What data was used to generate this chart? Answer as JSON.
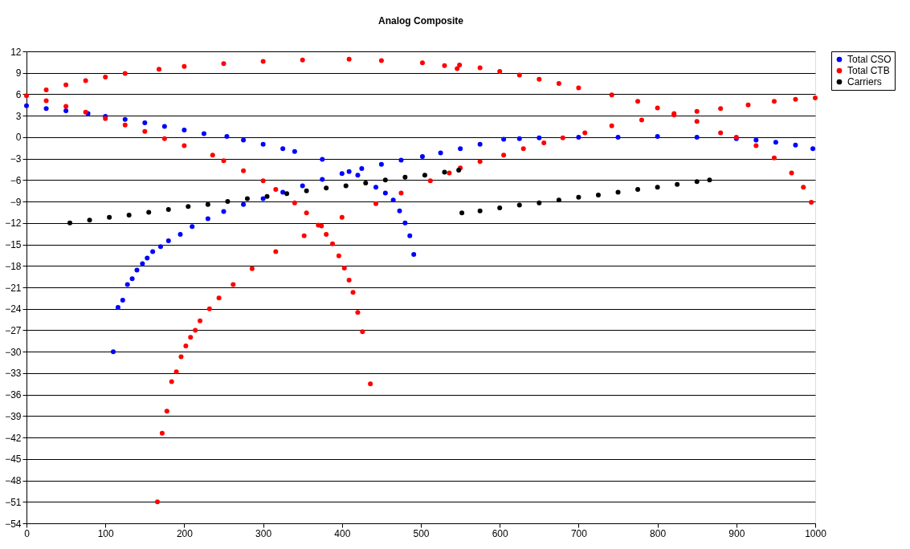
{
  "chart_data": {
    "type": "scatter",
    "title": "Analog Composite",
    "xlim": [
      0,
      1000
    ],
    "xticks": [
      0,
      100,
      200,
      300,
      400,
      500,
      600,
      700,
      800,
      900,
      1000
    ],
    "ylim": [
      -54,
      12
    ],
    "yticks": [
      -54,
      -51,
      -48,
      -45,
      -42,
      -39,
      -36,
      -33,
      -30,
      -27,
      -24,
      -21,
      -18,
      -15,
      -12,
      -9,
      -6,
      -3,
      0,
      3,
      6,
      9,
      12
    ],
    "grid": "y",
    "legend": "right",
    "marker": "circle",
    "series": [
      {
        "name": "Total CSO",
        "color": "#0000ff",
        "x": [
          0,
          25,
          50,
          78,
          100,
          125,
          150,
          175,
          200,
          225,
          254,
          275,
          300,
          325,
          340,
          375,
          409,
          420,
          443,
          455,
          465,
          473,
          480,
          486,
          491,
          110,
          116,
          122,
          128,
          134,
          140,
          147,
          153,
          160,
          170,
          180,
          195,
          210,
          230,
          250,
          275,
          300,
          325,
          350,
          375,
          400,
          425,
          450,
          475,
          502,
          525,
          550,
          575,
          605,
          625,
          650,
          700,
          750,
          800,
          850,
          900,
          925,
          950,
          975,
          997
        ],
        "values": [
          4.4,
          4.0,
          3.7,
          3.3,
          2.9,
          2.5,
          2.0,
          1.5,
          1.0,
          0.5,
          0.1,
          -0.4,
          -1.0,
          -1.6,
          -2.0,
          -3.1,
          -4.8,
          -5.3,
          -7.0,
          -7.8,
          -8.8,
          -10.3,
          -12.0,
          -13.8,
          -16.4,
          -30.0,
          -23.8,
          -22.8,
          -20.6,
          -19.8,
          -18.6,
          -17.7,
          -16.9,
          -16.0,
          -15.3,
          -14.5,
          -13.6,
          -12.5,
          -11.4,
          -10.4,
          -9.4,
          -8.6,
          -7.7,
          -6.8,
          -5.9,
          -5.1,
          -4.4,
          -3.8,
          -3.2,
          -2.7,
          -2.2,
          -1.6,
          -1.0,
          -0.3,
          -0.2,
          -0.1,
          0.0,
          0.0,
          0.1,
          0.0,
          -0.2,
          -0.4,
          -0.7,
          -1.1,
          -1.6
        ]
      },
      {
        "name": "Total CTB",
        "color": "#ff0000",
        "x": [
          0,
          25,
          50,
          75,
          100,
          125,
          168,
          200,
          250,
          300,
          350,
          409,
          450,
          502,
          530,
          546,
          549,
          575,
          600,
          625,
          650,
          675,
          700,
          742,
          775,
          800,
          821,
          850,
          880,
          900,
          925,
          948,
          970,
          985,
          995,
          25,
          50,
          75,
          100,
          125,
          150,
          175,
          200,
          236,
          250,
          275,
          300,
          316,
          340,
          355,
          370,
          380,
          388,
          396,
          403,
          409,
          414,
          420,
          426,
          436,
          166,
          172,
          178,
          184,
          190,
          196,
          202,
          208,
          214,
          220,
          232,
          244,
          262,
          286,
          316,
          352,
          374,
          400,
          443,
          475,
          512,
          536,
          550,
          575,
          605,
          630,
          656,
          680,
          708,
          742,
          780,
          821,
          850,
          880,
          915,
          948,
          975,
          1000
        ],
        "values": [
          5.8,
          6.6,
          7.3,
          7.9,
          8.4,
          8.9,
          9.5,
          9.9,
          10.3,
          10.6,
          10.8,
          10.9,
          10.7,
          10.4,
          10.0,
          9.6,
          10.1,
          9.7,
          9.2,
          8.7,
          8.1,
          7.5,
          6.9,
          5.9,
          5.0,
          4.1,
          3.3,
          2.2,
          0.6,
          0.0,
          -1.2,
          -2.9,
          -5.0,
          -7.0,
          -9.1,
          5.1,
          4.3,
          3.5,
          2.6,
          1.7,
          0.8,
          -0.2,
          -1.2,
          -2.5,
          -3.3,
          -4.7,
          -6.1,
          -7.3,
          -9.2,
          -10.6,
          -12.3,
          -13.6,
          -14.9,
          -16.6,
          -18.3,
          -20.0,
          -21.7,
          -24.5,
          -27.2,
          -34.5,
          -51.0,
          -41.4,
          -38.3,
          -34.2,
          -32.8,
          -30.7,
          -29.2,
          -28.0,
          -27.0,
          -25.7,
          -24.0,
          -22.5,
          -20.6,
          -18.4,
          -16.0,
          -13.8,
          -12.4,
          -11.2,
          -9.3,
          -7.8,
          -6.1,
          -5.0,
          -4.3,
          -3.4,
          -2.5,
          -1.6,
          -0.8,
          -0.1,
          0.6,
          1.6,
          2.4,
          3.1,
          3.6,
          4.0,
          4.5,
          5.0,
          5.3,
          5.5
        ]
      },
      {
        "name": "Carriers",
        "color": "#000000",
        "x": [
          55,
          80,
          105,
          130,
          155,
          180,
          205,
          230,
          255,
          280,
          305,
          330,
          355,
          380,
          405,
          430,
          455,
          480,
          505,
          530,
          548,
          552,
          575,
          600,
          625,
          650,
          675,
          700,
          725,
          750,
          775,
          800,
          825,
          850,
          866
        ],
        "values": [
          -12.0,
          -11.6,
          -11.2,
          -10.9,
          -10.5,
          -10.1,
          -9.7,
          -9.4,
          -9.0,
          -8.6,
          -8.3,
          -7.9,
          -7.5,
          -7.1,
          -6.8,
          -6.4,
          -6.0,
          -5.6,
          -5.3,
          -4.9,
          -4.6,
          -10.6,
          -10.3,
          -9.9,
          -9.5,
          -9.2,
          -8.8,
          -8.4,
          -8.1,
          -7.7,
          -7.3,
          -7.0,
          -6.6,
          -6.2,
          -6.0
        ]
      }
    ]
  }
}
